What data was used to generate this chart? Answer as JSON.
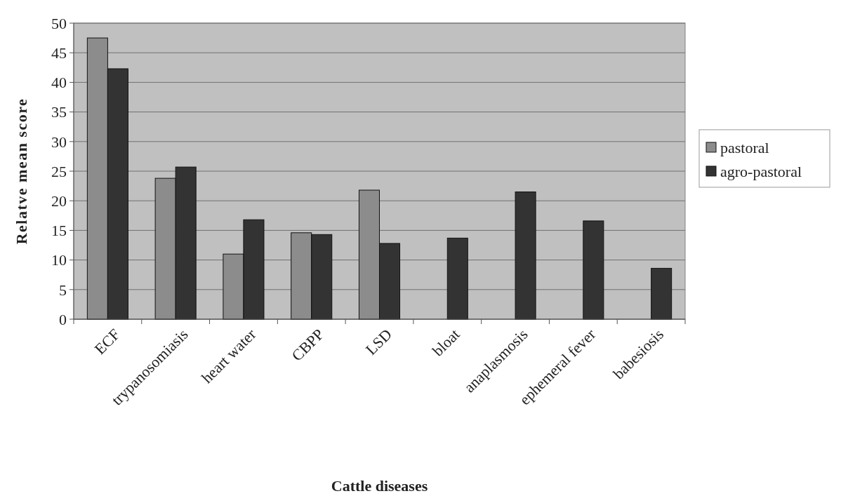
{
  "chart_data": {
    "type": "bar",
    "xlabel": "Cattle diseases",
    "ylabel": "Relatve mean score",
    "categories": [
      "ECF",
      "trypanosomiasis",
      "heart water",
      "CBPP",
      "LSD",
      "bloat",
      "anaplasmosis",
      "ephemeral fever",
      "babesiosis"
    ],
    "series": [
      {
        "name": "pastoral",
        "color": "#8c8c8c",
        "values": [
          47.5,
          23.8,
          11,
          14.6,
          21.8,
          null,
          null,
          null,
          null
        ]
      },
      {
        "name": "agro-pastoral",
        "color": "#333333",
        "values": [
          42.3,
          25.7,
          16.8,
          14.3,
          12.8,
          13.7,
          21.5,
          16.6,
          8.6
        ]
      }
    ],
    "ylim": [
      0,
      50
    ],
    "yticks": [
      0,
      5,
      10,
      15,
      20,
      25,
      30,
      35,
      40,
      45,
      50
    ],
    "grid": "y",
    "legend": "right"
  }
}
